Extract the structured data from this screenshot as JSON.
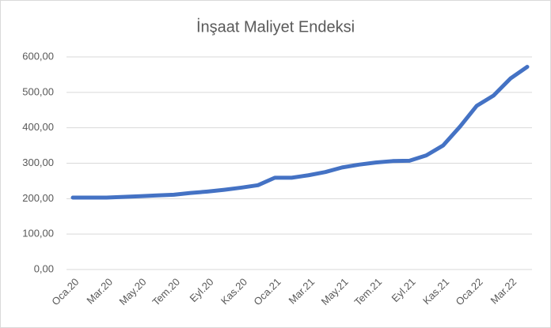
{
  "chart_data": {
    "type": "line",
    "title": "İnşaat Maliyet Endeksi",
    "categories": [
      "Oca.20",
      null,
      "Mar.20",
      null,
      "May.20",
      null,
      "Tem.20",
      null,
      "Eyl.20",
      null,
      "Kas.20",
      null,
      "Oca.21",
      null,
      "Mar.21",
      null,
      "May.21",
      null,
      "Tem.21",
      null,
      "Eyl.21",
      null,
      "Kas.21",
      null,
      "Oca.22",
      null,
      "Mar.22",
      null
    ],
    "series": [
      {
        "name": "İnşaat Maliyet Endeksi",
        "color": "#4472c4",
        "values": [
          203,
          203,
          203,
          205,
          207,
          209,
          211,
          216,
          220,
          225,
          231,
          238,
          259,
          259,
          266,
          275,
          288,
          296,
          302,
          306,
          307,
          322,
          350,
          403,
          462,
          491,
          539,
          572
        ]
      }
    ],
    "ylim": [
      0,
      600
    ],
    "yticks": [
      {
        "value": 0,
        "label": "0,00"
      },
      {
        "value": 100,
        "label": "100,00"
      },
      {
        "value": 200,
        "label": "200,00"
      },
      {
        "value": 300,
        "label": "300,00"
      },
      {
        "value": 400,
        "label": "400,00"
      },
      {
        "value": 500,
        "label": "500,00"
      },
      {
        "value": 600,
        "label": "600,00"
      }
    ],
    "grid": true
  }
}
